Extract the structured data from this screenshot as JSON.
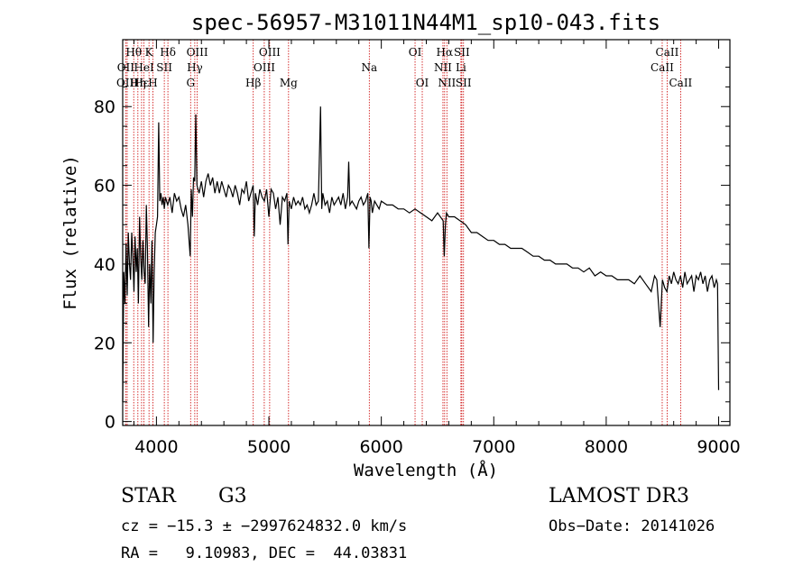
{
  "chart_data": {
    "type": "line",
    "title": "spec-56957-M31011N44M1_sp10-043.fits",
    "xlabel": "Wavelength (Å)",
    "ylabel": "Flux (relative)",
    "xlim": [
      3700,
      9100
    ],
    "ylim": [
      -1,
      97
    ],
    "xticks": [
      4000,
      5000,
      6000,
      7000,
      8000,
      9000
    ],
    "yticks": [
      0,
      20,
      40,
      60,
      80
    ],
    "series": [
      {
        "name": "spectrum",
        "x": [
          3700,
          3710,
          3720,
          3730,
          3740,
          3750,
          3760,
          3770,
          3780,
          3790,
          3800,
          3810,
          3820,
          3830,
          3840,
          3850,
          3860,
          3870,
          3880,
          3890,
          3900,
          3910,
          3920,
          3930,
          3940,
          3950,
          3960,
          3970,
          3980,
          3990,
          4000,
          4010,
          4020,
          4030,
          4040,
          4050,
          4060,
          4070,
          4080,
          4090,
          4100,
          4120,
          4140,
          4160,
          4180,
          4200,
          4220,
          4240,
          4260,
          4280,
          4300,
          4310,
          4320,
          4330,
          4340,
          4350,
          4360,
          4380,
          4400,
          4420,
          4440,
          4460,
          4480,
          4500,
          4520,
          4540,
          4560,
          4580,
          4600,
          4620,
          4640,
          4660,
          4680,
          4700,
          4720,
          4740,
          4760,
          4780,
          4800,
          4820,
          4840,
          4860,
          4870,
          4880,
          4900,
          4920,
          4940,
          4960,
          4980,
          5000,
          5020,
          5040,
          5060,
          5080,
          5100,
          5120,
          5140,
          5160,
          5170,
          5180,
          5200,
          5220,
          5240,
          5260,
          5280,
          5300,
          5320,
          5340,
          5360,
          5380,
          5400,
          5420,
          5440,
          5460,
          5470,
          5480,
          5500,
          5520,
          5540,
          5560,
          5580,
          5600,
          5620,
          5640,
          5660,
          5680,
          5700,
          5710,
          5720,
          5740,
          5760,
          5780,
          5800,
          5820,
          5840,
          5860,
          5880,
          5890,
          5900,
          5910,
          5920,
          5940,
          5960,
          5980,
          6000,
          6050,
          6100,
          6150,
          6200,
          6250,
          6300,
          6350,
          6400,
          6450,
          6500,
          6550,
          6560,
          6570,
          6580,
          6600,
          6650,
          6700,
          6750,
          6800,
          6850,
          6900,
          6950,
          7000,
          7050,
          7100,
          7150,
          7200,
          7250,
          7300,
          7350,
          7400,
          7450,
          7500,
          7550,
          7600,
          7650,
          7700,
          7750,
          7800,
          7850,
          7900,
          7950,
          8000,
          8050,
          8100,
          8150,
          8200,
          8250,
          8300,
          8350,
          8400,
          8430,
          8450,
          8480,
          8500,
          8520,
          8540,
          8560,
          8580,
          8600,
          8620,
          8640,
          8660,
          8680,
          8700,
          8720,
          8740,
          8760,
          8780,
          8800,
          8820,
          8840,
          8860,
          8880,
          8900,
          8920,
          8940,
          8960,
          8980,
          8990,
          9000
        ],
        "y": [
          5,
          38,
          30,
          45,
          32,
          48,
          40,
          36,
          48,
          42,
          33,
          47,
          38,
          44,
          30,
          52,
          42,
          36,
          46,
          38,
          35,
          55,
          44,
          24,
          40,
          30,
          46,
          20,
          38,
          48,
          50,
          52,
          76,
          56,
          58,
          55,
          57,
          54,
          57,
          56,
          55,
          57,
          53,
          58,
          56,
          57,
          54,
          52,
          55,
          50,
          42,
          59,
          52,
          62,
          61,
          78,
          60,
          58,
          61,
          57,
          61,
          63,
          60,
          62,
          58,
          61,
          58,
          61,
          59,
          57,
          60,
          59,
          57,
          60,
          58,
          55,
          59,
          58,
          61,
          56,
          58,
          60,
          47,
          58,
          55,
          59,
          57,
          56,
          59,
          52,
          59,
          58,
          54,
          57,
          50,
          57,
          56,
          58,
          45,
          56,
          54,
          57,
          55,
          56,
          55,
          57,
          54,
          55,
          53,
          55,
          58,
          55,
          56,
          80,
          54,
          58,
          55,
          56,
          53,
          57,
          55,
          56,
          57,
          55,
          58,
          54,
          57,
          66,
          55,
          56,
          55,
          54,
          56,
          57,
          55,
          56,
          58,
          44,
          57,
          56,
          53,
          56,
          55,
          54,
          56,
          55,
          55,
          54,
          54,
          53,
          54,
          53,
          52,
          51,
          53,
          51,
          42,
          50,
          53,
          52,
          52,
          51,
          50,
          48,
          48,
          47,
          46,
          46,
          45,
          45,
          44,
          44,
          44,
          43,
          42,
          42,
          41,
          41,
          40,
          40,
          40,
          39,
          39,
          38,
          39,
          37,
          38,
          37,
          37,
          36,
          36,
          36,
          35,
          37,
          35,
          33,
          37,
          36,
          24,
          36,
          34,
          33,
          37,
          35,
          38,
          36,
          35,
          37,
          34,
          38,
          35,
          36,
          37,
          33,
          37,
          36,
          38,
          35,
          37,
          33,
          36,
          37,
          34,
          36,
          35,
          8
        ]
      }
    ],
    "spectral_lines": [
      {
        "label": "Hθ",
        "x": 3798,
        "row": 1
      },
      {
        "label": "OII",
        "x": 3727,
        "row": 2
      },
      {
        "label": "OIII",
        "x": 3740,
        "row": 3
      },
      {
        "label": "Hε",
        "x": 3868,
        "row": 3
      },
      {
        "label": "K",
        "x": 3934,
        "row": 1
      },
      {
        "label": "HeI",
        "x": 3889,
        "row": 2
      },
      {
        "label": "Hη",
        "x": 3835,
        "row": 3
      },
      {
        "label": "H",
        "x": 3969,
        "row": 3
      },
      {
        "label": "Hδ",
        "x": 4102,
        "row": 1
      },
      {
        "label": "SII",
        "x": 4070,
        "row": 2
      },
      {
        "label": "OIII",
        "x": 4363,
        "row": 1
      },
      {
        "label": "Hγ",
        "x": 4341,
        "row": 2
      },
      {
        "label": "G",
        "x": 4304,
        "row": 3
      },
      {
        "label": "OIII",
        "x": 5007,
        "row": 1
      },
      {
        "label": "OIII",
        "x": 4959,
        "row": 2
      },
      {
        "label": "Hβ",
        "x": 4861,
        "row": 3
      },
      {
        "label": "Mg",
        "x": 5175,
        "row": 3
      },
      {
        "label": "Na",
        "x": 5893,
        "row": 2
      },
      {
        "label": "OI",
        "x": 6300,
        "row": 1
      },
      {
        "label": "OI",
        "x": 6364,
        "row": 3
      },
      {
        "label": "Hα",
        "x": 6563,
        "row": 1
      },
      {
        "label": "SII",
        "x": 6716,
        "row": 1
      },
      {
        "label": "NII",
        "x": 6548,
        "row": 2
      },
      {
        "label": "Li",
        "x": 6708,
        "row": 2
      },
      {
        "label": "NII",
        "x": 6583,
        "row": 3
      },
      {
        "label": "SII",
        "x": 6731,
        "row": 3
      },
      {
        "label": "CaII",
        "x": 8542,
        "row": 1
      },
      {
        "label": "CaII",
        "x": 8498,
        "row": 2
      },
      {
        "label": "CaII",
        "x": 8662,
        "row": 3
      }
    ]
  },
  "info": {
    "class": "STAR",
    "subclass": "G3",
    "survey": "LAMOST DR3",
    "velocity": "cz = −15.3 ± −2997624832.0 km/s",
    "obs_date": "Obs−Date: 20141026",
    "coords": "RA =   9.10983, DEC =  44.03831"
  },
  "colors": {
    "spectrum": "#000000",
    "lines": "#cc0000",
    "axes": "#000000"
  }
}
